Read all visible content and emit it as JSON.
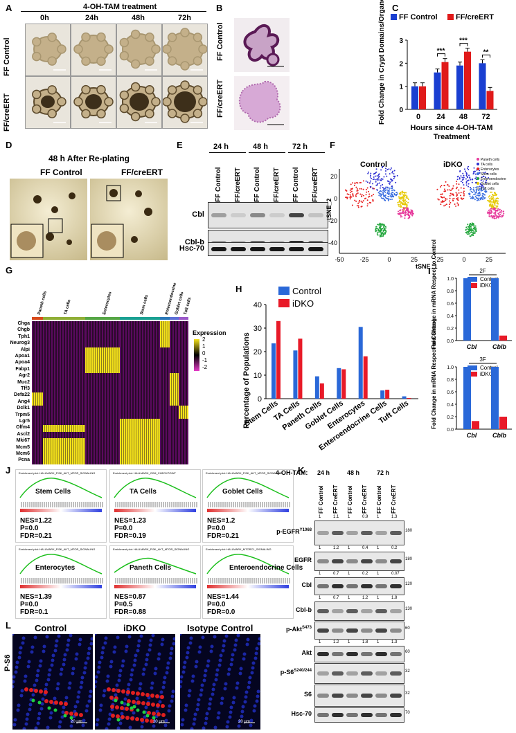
{
  "panels": [
    "A",
    "B",
    "C",
    "D",
    "E",
    "F",
    "G",
    "H",
    "I",
    "J",
    "K",
    "L"
  ],
  "A": {
    "title": "4-OH-TAM treatment",
    "timepoints": [
      "0h",
      "24h",
      "48h",
      "72h"
    ],
    "rows": [
      "FF Control",
      "FF/creERT"
    ]
  },
  "B": {
    "rows": [
      "FF Control",
      "FF/creERT"
    ]
  },
  "C": {
    "legend": [
      "FF Control",
      "FF/creERT"
    ],
    "colors": {
      "control": "#1a3fd1",
      "cre": "#e01a1a"
    },
    "ylabel": "Fold Change in Crypt Domains/Organoid",
    "xlabel": "Hours since 4-OH-TAM Treatment",
    "sig": [
      "***",
      "***",
      "**"
    ]
  },
  "D": {
    "title": "48 h After Re-plating",
    "cols": [
      "FF Control",
      "FF/creERT"
    ]
  },
  "E": {
    "times": [
      "24 h",
      "48 h",
      "72 h"
    ],
    "lanes": [
      "FF Control",
      "FF/creERT",
      "FF Control",
      "FF/creERT",
      "FF Control",
      "FF/creERT"
    ],
    "bands": [
      "Cbl",
      "Cbl-b",
      "Hsc-70"
    ]
  },
  "F": {
    "titles": [
      "Control",
      "iDKO"
    ],
    "legend": [
      "Paneth cells",
      "TA cells",
      "Enterocytes",
      "Stem cells",
      "Enteroendocrine",
      "Goblet cells",
      "Tuft cells"
    ],
    "ylabel": "tSNE_2",
    "xlabel": "tSNE_1",
    "xticks": [
      "-50",
      "-25",
      "0",
      "25",
      "-25",
      "0",
      "25"
    ],
    "yticks": [
      "20",
      "0",
      "-20",
      "-40"
    ]
  },
  "G": {
    "groups": [
      "Paneth cells",
      "TA cells",
      "Enterocytes",
      "Stem cells",
      "Enteroendocrine",
      "Goblet cells",
      "Tuft cells"
    ],
    "genes": [
      "Chga",
      "Chgb",
      "Tph1",
      "Neurog3",
      "Alpi",
      "Apoa1",
      "Apoa4",
      "Fabp1",
      "Agr2",
      "Muc2",
      "Tff3",
      "Defa22",
      "Ang4",
      "Dclk1",
      "Trpm5",
      "Lgr5",
      "Olfm4",
      "Ascl2",
      "Mki67",
      "Mcm5",
      "Mcm6",
      "Pcna"
    ],
    "legend_title": "Expression",
    "legend_ticks": [
      "2",
      "1",
      "0",
      "-1",
      "-2"
    ]
  },
  "H": {
    "legend": [
      "Control",
      "iDKO"
    ],
    "ylabel": "Percentage of Populations",
    "yticks": [
      "0",
      "10",
      "20",
      "30",
      "40"
    ]
  },
  "I": {
    "panels": [
      "2F",
      "3F"
    ],
    "legend": [
      "Control",
      "iDKO"
    ],
    "ylabel": "Fold Change in mRNA Respect to Control",
    "yticks": [
      "0.0",
      "0.2",
      "0.4",
      "0.6",
      "0.8",
      "1.0"
    ]
  },
  "J": {
    "plots": [
      {
        "header": "Enrichment plot: HALLMARK_PI3K_AKT_MTOR_SIGNALING",
        "cell": "Stem Cells",
        "nes": "NES=1.22",
        "p": "P=0.0",
        "fdr": "FDR=0.21"
      },
      {
        "header": "Enrichment plot: HALLMARK_G2M_CHECKPOINT",
        "cell": "TA Cells",
        "nes": "NES=1.23",
        "p": "P=0.0",
        "fdr": "FDR=0.19"
      },
      {
        "header": "Enrichment plot: HALLMARK_PI3K_AKT_MTOR_SIGNALING",
        "cell": "Goblet Cells",
        "nes": "NES=1.2",
        "p": "P=0.0",
        "fdr": "FDR=0.21"
      },
      {
        "header": "Enrichment plot: HALLMARK_PI3K_AKT_MTOR_SIGNALING",
        "cell": "Enterocytes",
        "nes": "NES=1.39",
        "p": "P=0.0",
        "fdr": "FDR=0.1"
      },
      {
        "header": "Enrichment plot: HALLMARK_PI3K_AKT_MTOR_SIGNALING",
        "cell": "Paneth Cells",
        "nes": "NES=0.87",
        "p": "P=0.5",
        "fdr": "FDR=0.88"
      },
      {
        "header": "Enrichment plot: HALLMARK_MTORC1_SIGNALING",
        "cell": "Enteroendocrine Cells",
        "nes": "NES=1.44",
        "p": "P=0.0",
        "fdr": "FDR=0.0"
      }
    ]
  },
  "K": {
    "header": "4-OH-TAM:",
    "times": [
      "24 h",
      "48 h",
      "72 h"
    ],
    "lanes": [
      "FF Control",
      "FF CreERT",
      "FF Control",
      "FF CreERT",
      "FF Control",
      "FF CreERT"
    ],
    "bands": [
      {
        "name": "p-EGFR",
        "sup": "Y1068",
        "quant": [
          "1",
          "1.1",
          "1",
          "0.9",
          "1",
          "1.3"
        ],
        "mw": "180"
      },
      {
        "name": "EGFR",
        "sup": "",
        "quant": [
          "1",
          "1.2",
          "1",
          "0.4",
          "1",
          "0.2"
        ],
        "mw": "180"
      },
      {
        "name": "Cbl",
        "sup": "",
        "quant": [
          "1",
          "0.7",
          "1",
          "0.2",
          "1",
          "0.07"
        ],
        "mw": "120"
      },
      {
        "name": "Cbl-b",
        "sup": "",
        "quant": [
          "1",
          "0.7",
          "1",
          "1.2",
          "1",
          "1.8"
        ],
        "mw": "130"
      },
      {
        "name": "p-Akt",
        "sup": "S473",
        "quant": [],
        "mw": "60"
      },
      {
        "name": "Akt",
        "sup": "",
        "quant": [
          "1",
          "1.2",
          "1",
          "1.8",
          "1",
          "1.3"
        ],
        "mw": "60"
      },
      {
        "name": "p-S6",
        "sup": "S240/244",
        "quant": [],
        "mw": "32"
      },
      {
        "name": "S6",
        "sup": "",
        "quant": [],
        "mw": "32"
      },
      {
        "name": "Hsc-70",
        "sup": "",
        "quant": [],
        "mw": "70"
      }
    ]
  },
  "L": {
    "rowlabel": "P-S6",
    "cols": [
      "Control",
      "iDKO",
      "Isotype Control"
    ],
    "scale": "20 μm"
  },
  "chart_data": [
    {
      "type": "bar",
      "panel": "C",
      "categories": [
        "0",
        "24",
        "48",
        "72"
      ],
      "series": [
        {
          "name": "FF Control",
          "values": [
            1.0,
            1.6,
            1.9,
            2.0
          ]
        },
        {
          "name": "FF/creERT",
          "values": [
            1.0,
            2.05,
            2.5,
            0.8
          ]
        }
      ],
      "xlabel": "Hours since 4-OH-TAM Treatment",
      "ylabel": "Fold Change in Crypt Domains/Organoid",
      "ylim": [
        0,
        3
      ],
      "yticks": [
        "0",
        "1",
        "2",
        "3"
      ]
    },
    {
      "type": "bar",
      "panel": "H",
      "categories": [
        "Stem Cells",
        "TA Cells",
        "Paneth Cells",
        "Goblet Cells",
        "Enterocytes",
        "Enteroendocrine Cells",
        "Tuft Cells"
      ],
      "series": [
        {
          "name": "Control",
          "values": [
            23.5,
            20.5,
            9.5,
            13,
            30.5,
            3.5,
            1
          ]
        },
        {
          "name": "iDKO",
          "values": [
            33,
            25.5,
            6.5,
            12.5,
            18,
            3.8,
            0.3
          ]
        }
      ],
      "ylabel": "Percentage of Populations",
      "ylim": [
        0,
        40
      ]
    },
    {
      "type": "bar",
      "panel": "I-2F",
      "title": "2F",
      "categories": [
        "Cbl",
        "Cblb"
      ],
      "series": [
        {
          "name": "Control",
          "values": [
            1.0,
            1.0
          ]
        },
        {
          "name": "iDKO",
          "values": [
            0.0,
            0.08
          ]
        }
      ],
      "ylim": [
        0,
        1.0
      ]
    },
    {
      "type": "bar",
      "panel": "I-3F",
      "title": "3F",
      "categories": [
        "Cbl",
        "Cblb"
      ],
      "series": [
        {
          "name": "Control",
          "values": [
            1.0,
            1.0
          ]
        },
        {
          "name": "iDKO",
          "values": [
            0.13,
            0.2
          ]
        }
      ],
      "ylim": [
        0,
        1.0
      ]
    }
  ]
}
